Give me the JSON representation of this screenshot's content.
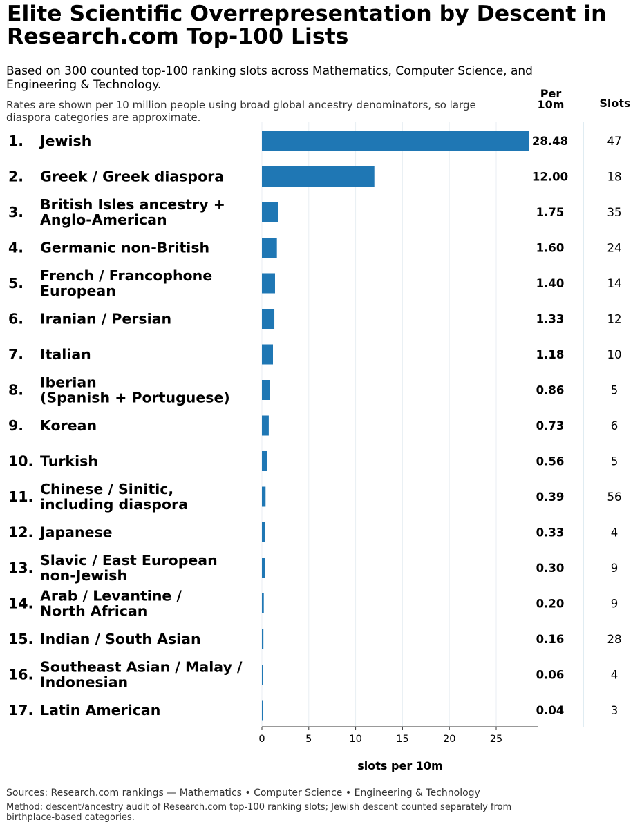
{
  "header": {
    "title": "Elite Scientific Overrepresentation by Descent in Research.com Top-100 Lists",
    "subtitle": "Based on 300 counted top-100 ranking slots across Mathematics, Computer Science, and Engineering & Technology.",
    "note": "Rates are shown per 10 million people using broad global ancestry denominators, so large diaspora categories are approximate.",
    "col_rate_line1": "Per",
    "col_rate_line2": "10m",
    "col_slots": "Slots"
  },
  "footer": {
    "sources": "Sources: Research.com rankings — Mathematics • Computer Science • Engineering & Technology",
    "method": "Method: descent/ancestry audit of Research.com top-100 ranking slots; Jewish descent counted separately from birthplace-based categories."
  },
  "chart_data": {
    "type": "bar",
    "orientation": "horizontal",
    "bar_color": "#1f77b4",
    "xlabel": "slots per 10m",
    "xlim": [
      0,
      29.5
    ],
    "xticks": [
      0,
      5,
      10,
      15,
      20,
      25
    ],
    "grid": true,
    "rows": [
      {
        "rank": "1.",
        "label": [
          "Jewish"
        ],
        "rate": 28.48,
        "rate_label": "28.48",
        "slots": "47"
      },
      {
        "rank": "2.",
        "label": [
          "Greek / Greek diaspora"
        ],
        "rate": 12.0,
        "rate_label": "12.00",
        "slots": "18"
      },
      {
        "rank": "3.",
        "label": [
          "British Isles ancestry +",
          "Anglo-American"
        ],
        "rate": 1.75,
        "rate_label": "1.75",
        "slots": "35"
      },
      {
        "rank": "4.",
        "label": [
          "Germanic non-British"
        ],
        "rate": 1.6,
        "rate_label": "1.60",
        "slots": "24"
      },
      {
        "rank": "5.",
        "label": [
          "French / Francophone",
          "European"
        ],
        "rate": 1.4,
        "rate_label": "1.40",
        "slots": "14"
      },
      {
        "rank": "6.",
        "label": [
          "Iranian / Persian"
        ],
        "rate": 1.33,
        "rate_label": "1.33",
        "slots": "12"
      },
      {
        "rank": "7.",
        "label": [
          "Italian"
        ],
        "rate": 1.18,
        "rate_label": "1.18",
        "slots": "10"
      },
      {
        "rank": "8.",
        "label": [
          "Iberian",
          "(Spanish + Portuguese)"
        ],
        "rate": 0.86,
        "rate_label": "0.86",
        "slots": "5"
      },
      {
        "rank": "9.",
        "label": [
          "Korean"
        ],
        "rate": 0.73,
        "rate_label": "0.73",
        "slots": "6"
      },
      {
        "rank": "10.",
        "label": [
          "Turkish"
        ],
        "rate": 0.56,
        "rate_label": "0.56",
        "slots": "5"
      },
      {
        "rank": "11.",
        "label": [
          "Chinese / Sinitic,",
          "including diaspora"
        ],
        "rate": 0.39,
        "rate_label": "0.39",
        "slots": "56"
      },
      {
        "rank": "12.",
        "label": [
          "Japanese"
        ],
        "rate": 0.33,
        "rate_label": "0.33",
        "slots": "4"
      },
      {
        "rank": "13.",
        "label": [
          "Slavic / East European",
          "non-Jewish"
        ],
        "rate": 0.3,
        "rate_label": "0.30",
        "slots": "9"
      },
      {
        "rank": "14.",
        "label": [
          "Arab / Levantine /",
          "North African"
        ],
        "rate": 0.2,
        "rate_label": "0.20",
        "slots": "9"
      },
      {
        "rank": "15.",
        "label": [
          "Indian / South Asian"
        ],
        "rate": 0.16,
        "rate_label": "0.16",
        "slots": "28"
      },
      {
        "rank": "16.",
        "label": [
          "Southeast Asian / Malay /",
          "Indonesian"
        ],
        "rate": 0.06,
        "rate_label": "0.06",
        "slots": "4"
      },
      {
        "rank": "17.",
        "label": [
          "Latin American"
        ],
        "rate": 0.04,
        "rate_label": "0.04",
        "slots": "3"
      }
    ]
  }
}
